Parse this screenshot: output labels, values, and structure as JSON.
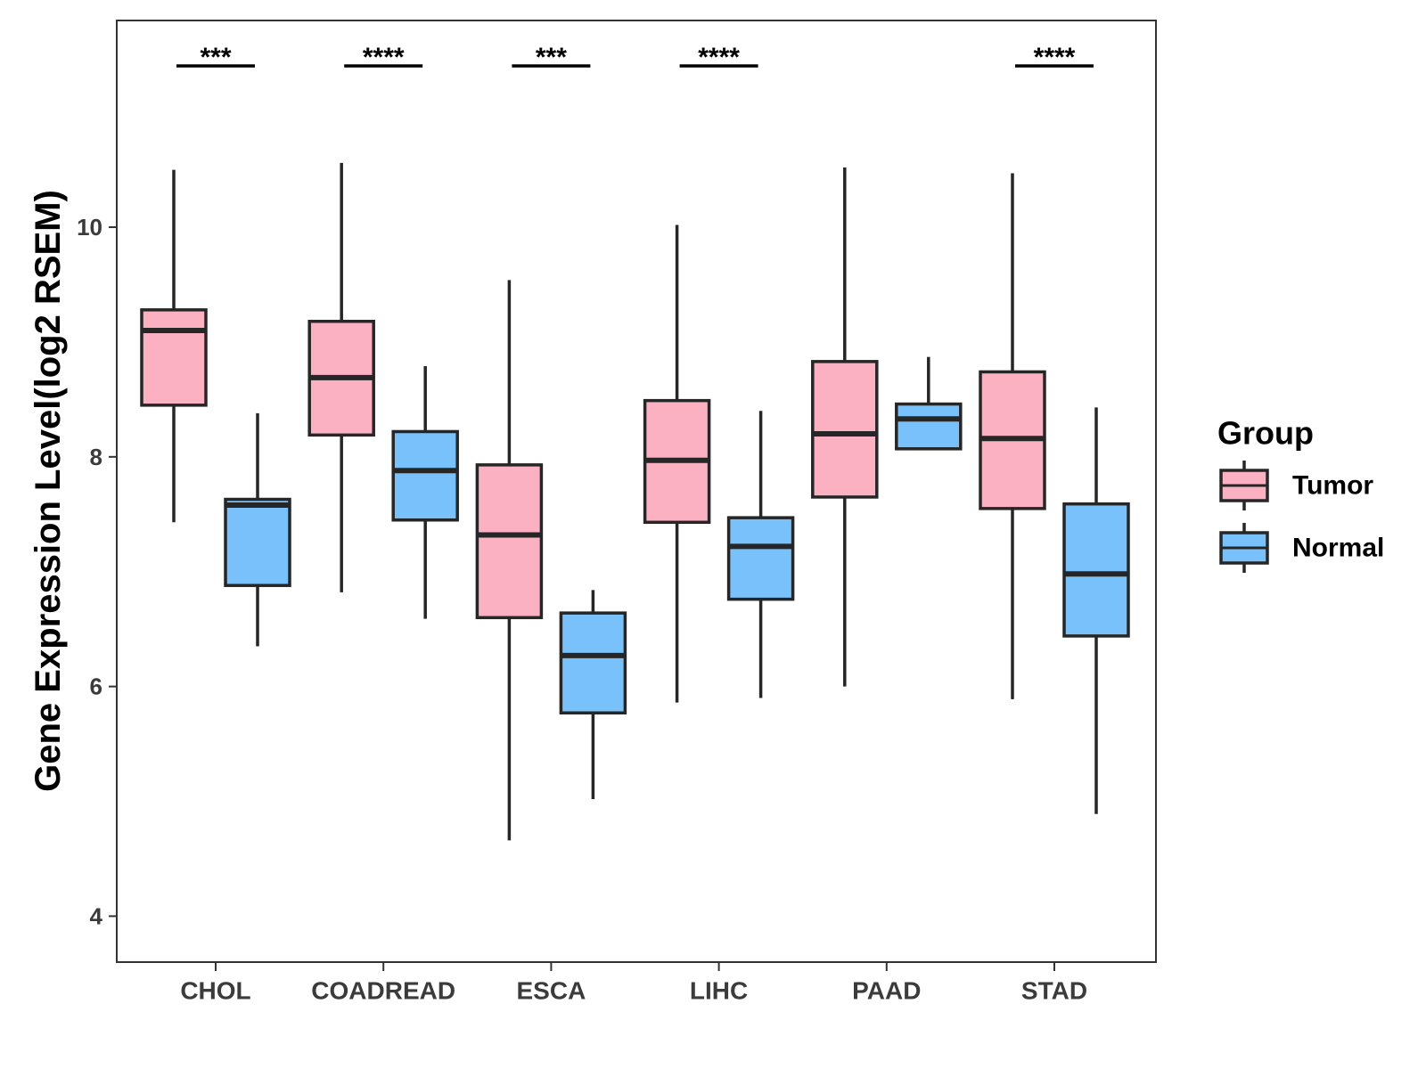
{
  "chart_data": {
    "type": "boxplot",
    "title": "",
    "xlabel": "",
    "ylabel": "Gene Expression Level(log2 RSEM)",
    "ylim": [
      3.6,
      11.8
    ],
    "yticks": [
      4,
      6,
      8,
      10
    ],
    "categories": [
      "CHOL",
      "COADREAD",
      "ESCA",
      "LIHC",
      "PAAD",
      "STAD"
    ],
    "legend": {
      "title": "Group",
      "position": "right"
    },
    "series": [
      {
        "name": "Tumor",
        "color": "#fbb1c2",
        "boxes": [
          {
            "min": 7.43,
            "q1": 8.45,
            "median": 9.1,
            "q3": 9.28,
            "max": 10.5
          },
          {
            "min": 6.82,
            "q1": 8.19,
            "median": 8.69,
            "q3": 9.18,
            "max": 10.56
          },
          {
            "min": 4.66,
            "q1": 6.6,
            "median": 7.32,
            "q3": 7.93,
            "max": 9.54
          },
          {
            "min": 5.86,
            "q1": 7.43,
            "median": 7.97,
            "q3": 8.49,
            "max": 10.02
          },
          {
            "min": 6.0,
            "q1": 7.65,
            "median": 8.2,
            "q3": 8.83,
            "max": 10.52
          },
          {
            "min": 5.89,
            "q1": 7.55,
            "median": 8.16,
            "q3": 8.74,
            "max": 10.47
          }
        ]
      },
      {
        "name": "Normal",
        "color": "#79c1fa",
        "boxes": [
          {
            "min": 6.35,
            "q1": 6.88,
            "median": 7.58,
            "q3": 7.63,
            "max": 8.38
          },
          {
            "min": 6.59,
            "q1": 7.45,
            "median": 7.88,
            "q3": 8.22,
            "max": 8.79
          },
          {
            "min": 5.02,
            "q1": 5.77,
            "median": 6.27,
            "q3": 6.64,
            "max": 6.84
          },
          {
            "min": 5.9,
            "q1": 6.76,
            "median": 7.22,
            "q3": 7.47,
            "max": 8.4
          },
          {
            "min": 8.07,
            "q1": 8.07,
            "median": 8.33,
            "q3": 8.46,
            "max": 8.87
          },
          {
            "min": 4.89,
            "q1": 6.44,
            "median": 6.98,
            "q3": 7.59,
            "max": 8.43
          }
        ]
      }
    ],
    "significance": [
      "***",
      "****",
      "***",
      "****",
      "",
      "****"
    ]
  }
}
